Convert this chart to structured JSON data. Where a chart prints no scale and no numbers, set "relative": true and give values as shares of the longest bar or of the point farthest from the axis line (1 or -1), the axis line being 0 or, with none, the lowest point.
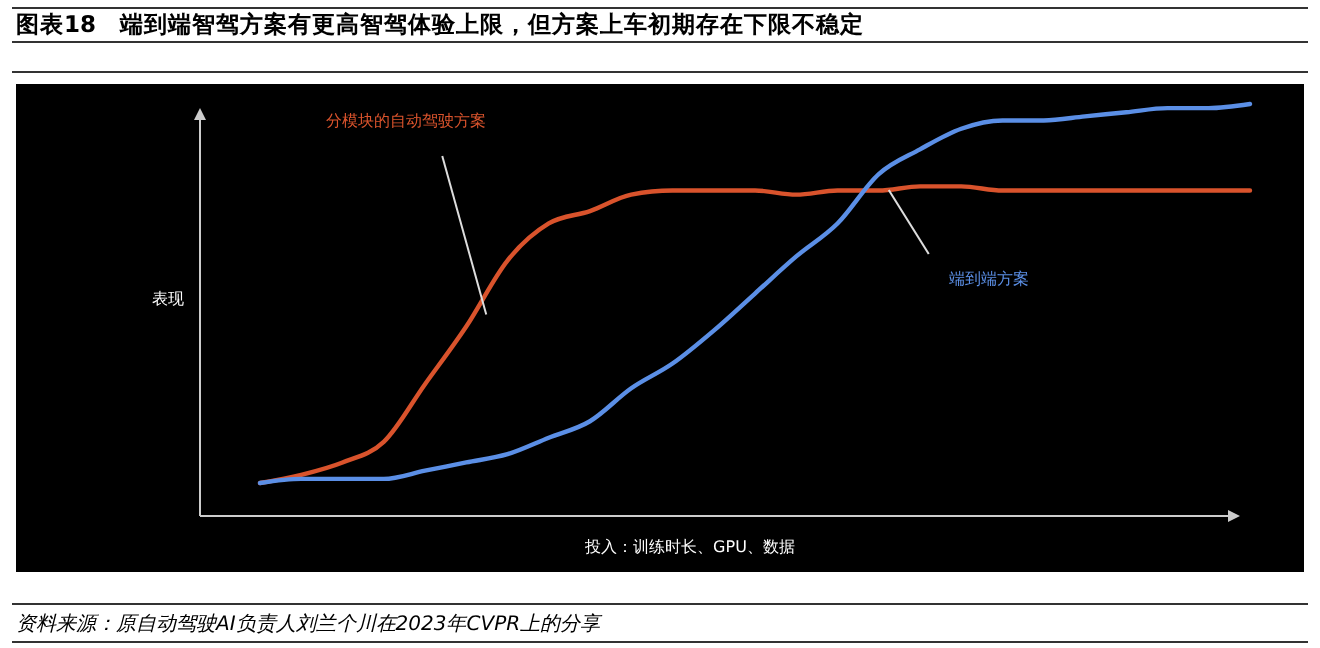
{
  "chart_data": {
    "type": "line",
    "relative": true,
    "title": "图表18　端到端智驾方案有更高智驾体验上限，但方案上车初期存在下限不稳定",
    "xlabel": "投入：训练时长、GPU、数据",
    "ylabel": "表现",
    "categories": [
      null,
      null,
      null,
      null,
      null,
      null,
      null,
      null,
      null,
      null,
      null,
      null,
      null,
      null,
      null,
      null,
      null,
      null,
      null,
      null,
      null,
      null,
      null,
      null,
      null
    ],
    "series": [
      {
        "name": "分模块的自动驾驶方案",
        "color": "#d9532c",
        "values": [
          0.08,
          0.1,
          0.13,
          0.18,
          0.32,
          0.46,
          0.62,
          0.71,
          0.74,
          0.78,
          0.79,
          0.79,
          0.79,
          0.78,
          0.79,
          0.79,
          0.8,
          0.8,
          0.79,
          0.79,
          0.79,
          0.79,
          0.79,
          0.79,
          0.79
        ]
      },
      {
        "name": "端到端方案",
        "color": "#5b8fe6",
        "values": [
          0.08,
          0.09,
          0.09,
          0.09,
          0.11,
          0.13,
          0.15,
          0.19,
          0.23,
          0.31,
          0.37,
          0.45,
          0.54,
          0.63,
          0.71,
          0.83,
          0.89,
          0.94,
          0.96,
          0.96,
          0.97,
          0.98,
          0.99,
          0.99,
          1
        ]
      }
    ],
    "legend": false,
    "annotations": [
      "资料来源：原自动驾驶AI负责人刘兰个川在2023年CVPR上的分享"
    ]
  }
}
